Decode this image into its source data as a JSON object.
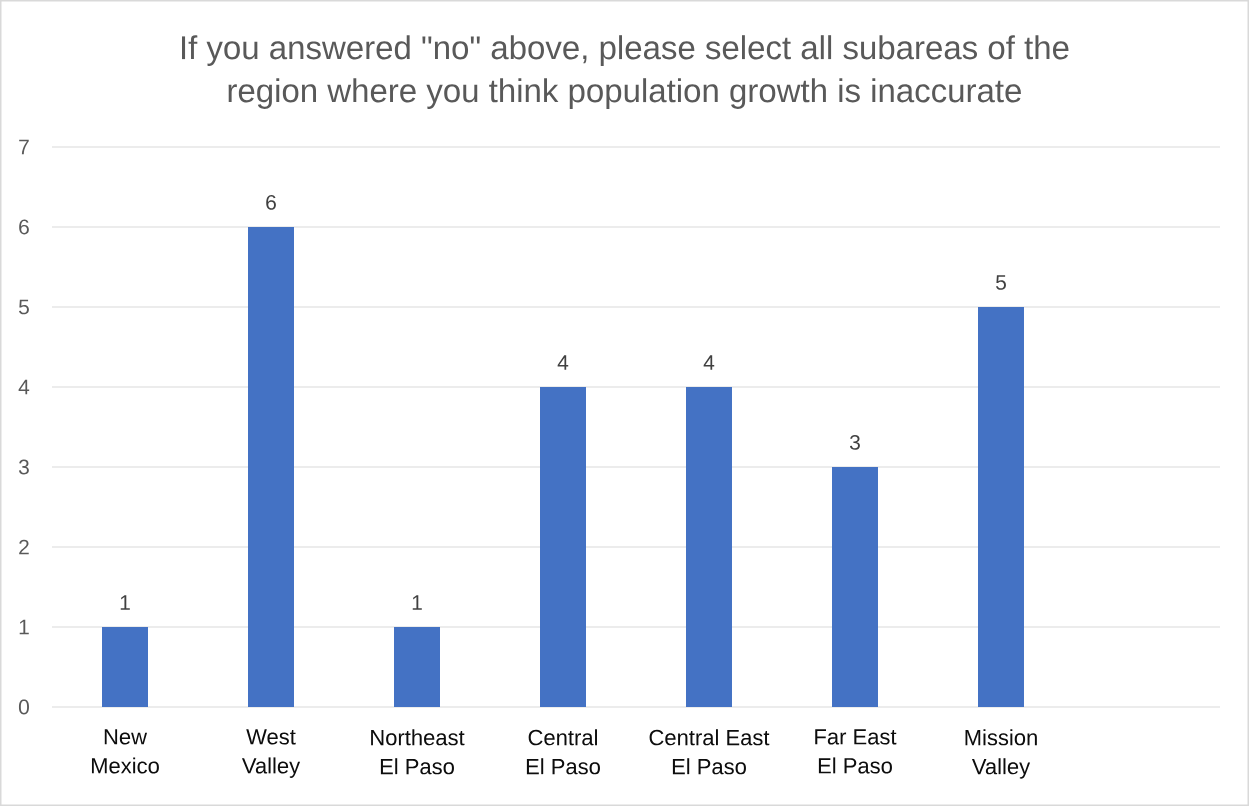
{
  "chart_data": {
    "type": "bar",
    "title": "If you answered \"no\" above, please select all subareas of the region where you think population growth is inaccurate",
    "categories": [
      "New Mexico",
      "West Valley",
      "Northeast El Paso",
      "Central El Paso",
      "Central East El Paso",
      "Far East El Paso",
      "Mission Valley",
      null
    ],
    "values": [
      1,
      6,
      1,
      4,
      4,
      3,
      5,
      null
    ],
    "color": "#4472c4",
    "ylim": [
      0,
      7
    ],
    "yticks": [
      0,
      1,
      2,
      3,
      4,
      5,
      6,
      7
    ],
    "grid": "y",
    "data_labels": true
  }
}
